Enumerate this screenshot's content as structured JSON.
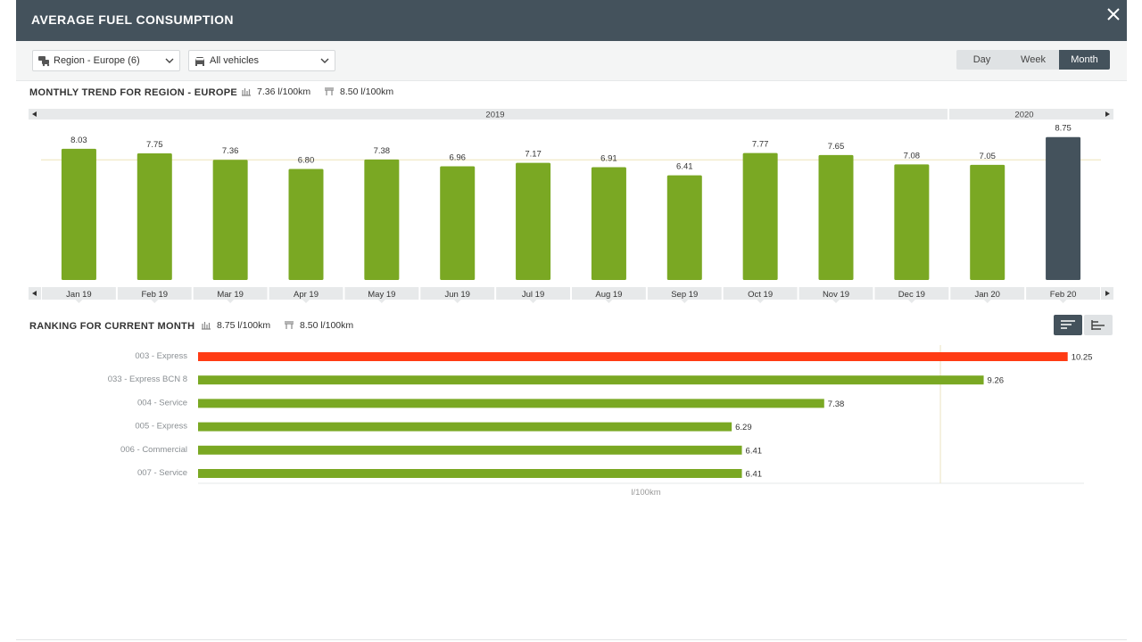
{
  "header": {
    "title": "AVERAGE FUEL CONSUMPTION",
    "close_icon": "close-icon"
  },
  "filters": {
    "region": {
      "value": "Region - Europe (6)",
      "icon": "vehicle-group-icon"
    },
    "vehicles": {
      "value": "All vehicles",
      "icon": "car-icon"
    }
  },
  "period_tabs": {
    "options": [
      "Day",
      "Week",
      "Month"
    ],
    "selected": "Month"
  },
  "trend": {
    "title": "MONTHLY TREND FOR REGION - EUROPE",
    "stat_average": "7.36 l/100km",
    "stat_target": "8.50 l/100km"
  },
  "ranking": {
    "title": "RANKING FOR CURRENT MONTH",
    "stat_average": "8.75 l/100km",
    "stat_target": "8.50 l/100km",
    "axis_unit": "l/100km"
  },
  "colors": {
    "bar_green": "#7aa823",
    "bar_highlight": "#44525c",
    "bar_alert": "#ff3b14",
    "header_bg": "#44525c"
  },
  "chart_data": [
    {
      "type": "bar",
      "title": "MONTHLY TREND FOR REGION - EUROPE",
      "year_labels": [
        {
          "label": "2019",
          "from": "Jan 19",
          "to": "Dec 19"
        },
        {
          "label": "2020",
          "from": "Jan 20",
          "to": "Feb 20"
        }
      ],
      "categories": [
        "Jan 19",
        "Feb 19",
        "Mar 19",
        "Apr 19",
        "May 19",
        "Jun 19",
        "Jul 19",
        "Aug 19",
        "Sep 19",
        "Oct 19",
        "Nov 19",
        "Dec 19",
        "Jan 20",
        "Feb 20"
      ],
      "values": [
        8.03,
        7.75,
        7.36,
        6.8,
        7.38,
        6.96,
        7.17,
        6.91,
        6.41,
        7.77,
        7.65,
        7.08,
        7.05,
        8.75
      ],
      "data_labels": [
        "8.03",
        "7.75",
        "7.36",
        "6.80",
        "7.38",
        "6.96",
        "7.17",
        "6.91",
        "6.41",
        "7.77",
        "7.65",
        "7.08",
        "7.05",
        "8.75"
      ],
      "highlighted": "Feb 20",
      "reference_line": 7.36,
      "ylim": [
        0,
        9.5
      ]
    },
    {
      "type": "bar",
      "orientation": "horizontal",
      "title": "RANKING FOR CURRENT MONTH",
      "categories": [
        "003 - Express",
        "033 - Express BCN 8",
        "004 - Service",
        "005 - Express",
        "006 - Commercial",
        "007 - Service"
      ],
      "values": [
        10.25,
        9.26,
        7.38,
        6.29,
        6.41,
        6.41
      ],
      "data_labels": [
        "10.25",
        "9.26",
        "7.38",
        "6.29",
        "6.41",
        "6.41"
      ],
      "alert": "003 - Express",
      "reference_line": 8.75,
      "xlabel": "l/100km",
      "xlim": [
        0,
        10.8
      ]
    }
  ]
}
